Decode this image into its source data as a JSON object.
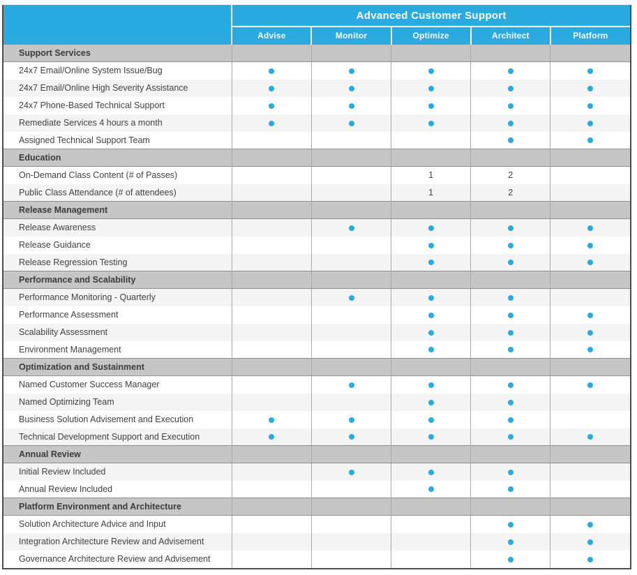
{
  "colors": {
    "accent": "#29abe2",
    "section_bg": "#c6c6c6",
    "row_alt": "#f4f4f4",
    "grid_line": "#a9a9a9",
    "outer_border": "#4c4c4c",
    "text": "#414042"
  },
  "header": {
    "title": "Advanced Customer Support",
    "columns": [
      "Advise",
      "Monitor",
      "Optimize",
      "Architect",
      "Platform"
    ]
  },
  "legend": {
    "dot_meaning": "included"
  },
  "sections": [
    {
      "title": "Support Services",
      "rows": [
        {
          "label": "24x7 Email/Online System Issue/Bug",
          "cells": [
            "dot",
            "dot",
            "dot",
            "dot",
            "dot"
          ]
        },
        {
          "label": "24x7 Email/Online High Severity Assistance",
          "cells": [
            "dot",
            "dot",
            "dot",
            "dot",
            "dot"
          ]
        },
        {
          "label": "24x7 Phone-Based Technical Support",
          "cells": [
            "dot",
            "dot",
            "dot",
            "dot",
            "dot"
          ]
        },
        {
          "label": "Remediate Services 4 hours a month",
          "cells": [
            "dot",
            "dot",
            "dot",
            "dot",
            "dot"
          ]
        },
        {
          "label": "Assigned Technical Support Team",
          "cells": [
            "",
            "",
            "",
            "dot",
            "dot"
          ]
        }
      ]
    },
    {
      "title": "Education",
      "rows": [
        {
          "label": "On-Demand Class Content (# of Passes)",
          "cells": [
            "",
            "",
            "1",
            "2",
            ""
          ]
        },
        {
          "label": "Public Class Attendance (# of attendees)",
          "cells": [
            "",
            "",
            "1",
            "2",
            ""
          ]
        }
      ]
    },
    {
      "title": "Release Management",
      "rows": [
        {
          "label": "Release Awareness",
          "cells": [
            "",
            "dot",
            "dot",
            "dot",
            "dot"
          ]
        },
        {
          "label": "Release Guidance",
          "cells": [
            "",
            "",
            "dot",
            "dot",
            "dot"
          ]
        },
        {
          "label": "Release Regression Testing",
          "cells": [
            "",
            "",
            "dot",
            "dot",
            "dot"
          ]
        }
      ]
    },
    {
      "title": "Performance and Scalability",
      "rows": [
        {
          "label": "Performance Monitoring - Quarterly",
          "cells": [
            "",
            "dot",
            "dot",
            "dot",
            ""
          ]
        },
        {
          "label": "Performance Assessment",
          "cells": [
            "",
            "",
            "dot",
            "dot",
            "dot"
          ]
        },
        {
          "label": "Scalability Assessment",
          "cells": [
            "",
            "",
            "dot",
            "dot",
            "dot"
          ]
        },
        {
          "label": "Environment Management",
          "cells": [
            "",
            "",
            "dot",
            "dot",
            "dot"
          ]
        }
      ]
    },
    {
      "title": "Optimization and Sustainment",
      "rows": [
        {
          "label": "Named Customer Success Manager",
          "cells": [
            "",
            "dot",
            "dot",
            "dot",
            "dot"
          ]
        },
        {
          "label": "Named Optimizing Team",
          "cells": [
            "",
            "",
            "dot",
            "dot",
            ""
          ]
        },
        {
          "label": "Business Solution Advisement and Execution",
          "cells": [
            "dot",
            "dot",
            "dot",
            "dot",
            ""
          ]
        },
        {
          "label": "Technical Development Support and Execution",
          "cells": [
            "dot",
            "dot",
            "dot",
            "dot",
            "dot"
          ]
        }
      ]
    },
    {
      "title": "Annual Review",
      "rows": [
        {
          "label": "Initial Review Included",
          "cells": [
            "",
            "dot",
            "dot",
            "dot",
            ""
          ]
        },
        {
          "label": "Annual Review Included",
          "cells": [
            "",
            "",
            "dot",
            "dot",
            ""
          ]
        }
      ]
    },
    {
      "title": "Platform Environment and Architecture",
      "rows": [
        {
          "label": "Solution Architecture Advice and Input",
          "cells": [
            "",
            "",
            "",
            "dot",
            "dot"
          ]
        },
        {
          "label": "Integration Architecture Review and Advisement",
          "cells": [
            "",
            "",
            "",
            "dot",
            "dot"
          ]
        },
        {
          "label": "Governance Architecture Review and Advisement",
          "cells": [
            "",
            "",
            "",
            "dot",
            "dot"
          ]
        }
      ]
    }
  ]
}
